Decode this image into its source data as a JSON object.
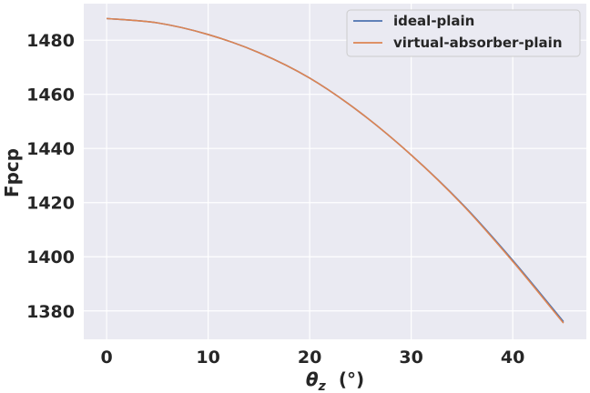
{
  "chart_data": {
    "type": "line",
    "title": "",
    "xlabel_symbol": "θ",
    "xlabel_subscript": "z",
    "xlabel_unit": "(°)",
    "ylabel": "Fpcp",
    "xlim": [
      -2.25,
      47.25
    ],
    "ylim": [
      1369.5,
      1493.5
    ],
    "xticks": [
      0,
      10,
      20,
      30,
      40
    ],
    "yticks": [
      1380,
      1400,
      1420,
      1440,
      1460,
      1480
    ],
    "grid": true,
    "legend_position": "top-right",
    "x": [
      0,
      5,
      10,
      15,
      20,
      25,
      30,
      35,
      40,
      45
    ],
    "series": [
      {
        "name": "ideal-plain",
        "color": "#4c72b0",
        "values": [
          1488.0,
          1486.4,
          1482.1,
          1475.4,
          1466.0,
          1453.2,
          1437.6,
          1419.6,
          1398.7,
          1376.0
        ]
      },
      {
        "name": "virtual-absorber-plain",
        "color": "#dd8452",
        "values": [
          1488.0,
          1486.4,
          1482.1,
          1475.4,
          1466.0,
          1453.2,
          1437.6,
          1419.4,
          1398.3,
          1375.5
        ]
      }
    ]
  }
}
